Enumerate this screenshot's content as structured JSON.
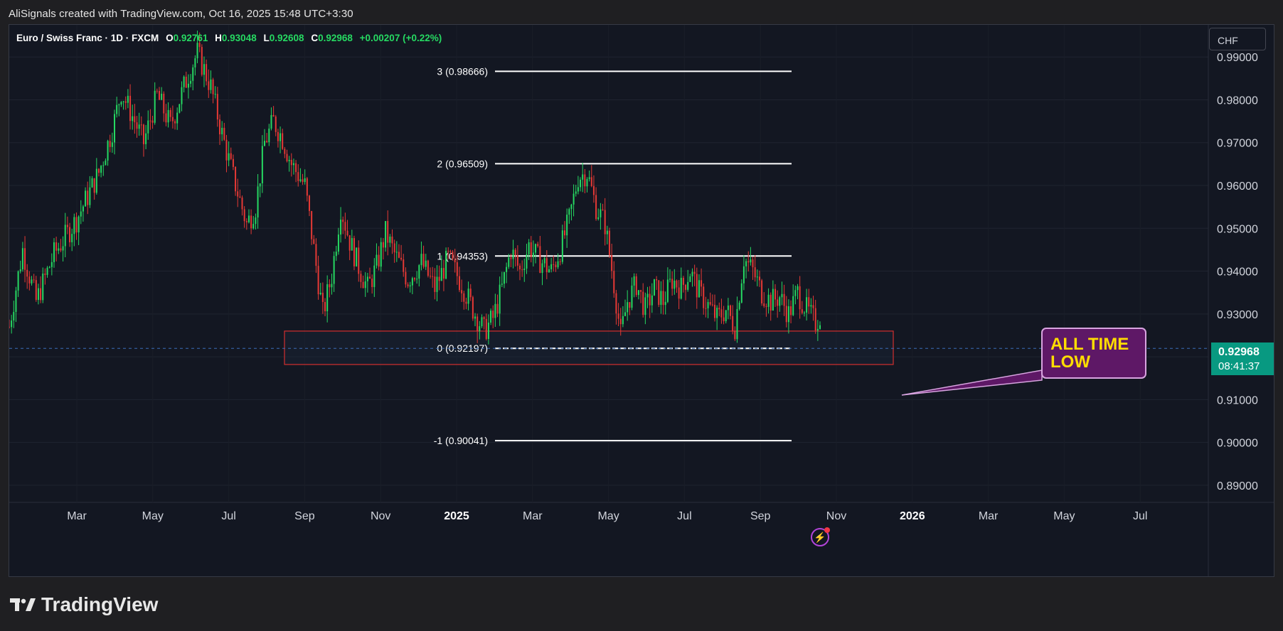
{
  "attribution": "AliSignals created with TradingView.com, Oct 16, 2025 15:48 UTC+3:30",
  "symbol": {
    "title": "Euro / Swiss Franc · 1D · FXCM",
    "open_label": "O",
    "open": "0.92761",
    "high_label": "H",
    "high": "0.93048",
    "low_label": "L",
    "low": "0.92608",
    "close_label": "C",
    "close": "0.92968",
    "change": "+0.00207 (+0.22%)"
  },
  "currency": "CHF",
  "price_tag": {
    "price": "0.92968",
    "countdown": "08:41:37"
  },
  "callout": {
    "line1": "ALL TIME",
    "line2": "LOW"
  },
  "logo_text": "TradingView",
  "icons": {
    "alert": "lightning-icon",
    "logo": "tradingview-logo-icon"
  },
  "colors": {
    "up": "#26d962",
    "down": "#e53935",
    "background": "#131722",
    "callout_bg": "#5e1866",
    "callout_text": "#ffdd00",
    "price_tag": "#089981",
    "zone_border": "#d32f2f"
  },
  "chart_data": {
    "type": "candlestick",
    "symbol": "EURCHF",
    "timeframe": "1D",
    "ylim": [
      0.886,
      0.9975
    ],
    "y_ticks": [
      "0.99000",
      "0.98000",
      "0.97000",
      "0.96000",
      "0.95000",
      "0.94000",
      "0.93000",
      "0.92000",
      "0.91000",
      "0.90000",
      "0.89000"
    ],
    "x_ticks": [
      {
        "label": "Mar",
        "year": false
      },
      {
        "label": "May",
        "year": false
      },
      {
        "label": "Jul",
        "year": false
      },
      {
        "label": "Sep",
        "year": false
      },
      {
        "label": "Nov",
        "year": false
      },
      {
        "label": "2025",
        "year": true
      },
      {
        "label": "Mar",
        "year": false
      },
      {
        "label": "May",
        "year": false
      },
      {
        "label": "Jul",
        "year": false
      },
      {
        "label": "Sep",
        "year": false
      },
      {
        "label": "Nov",
        "year": false
      },
      {
        "label": "2026",
        "year": true
      },
      {
        "label": "Mar",
        "year": false
      },
      {
        "label": "May",
        "year": false
      },
      {
        "label": "Jul",
        "year": false
      }
    ],
    "fib_levels": [
      {
        "label": "3 (0.98666)",
        "value": 0.98666
      },
      {
        "label": "2 (0.96509)",
        "value": 0.96509
      },
      {
        "label": "1 (0.94353)",
        "value": 0.94353
      },
      {
        "label": "0 (0.92197)",
        "value": 0.92197
      },
      {
        "label": "-1 (0.90041)",
        "value": 0.90041
      }
    ],
    "support_zone": [
      0.9182,
      0.926
    ],
    "last_price": 0.92968,
    "anchors": [
      [
        0,
        0.927
      ],
      [
        6,
        0.945
      ],
      [
        12,
        0.933
      ],
      [
        20,
        0.944
      ],
      [
        30,
        0.952
      ],
      [
        40,
        0.963
      ],
      [
        46,
        0.973
      ],
      [
        50,
        0.982
      ],
      [
        56,
        0.975
      ],
      [
        60,
        0.97
      ],
      [
        66,
        0.981
      ],
      [
        72,
        0.974
      ],
      [
        80,
        0.986
      ],
      [
        84,
        0.991
      ],
      [
        90,
        0.983
      ],
      [
        95,
        0.972
      ],
      [
        100,
        0.962
      ],
      [
        106,
        0.951
      ],
      [
        110,
        0.955
      ],
      [
        114,
        0.97
      ],
      [
        118,
        0.975
      ],
      [
        122,
        0.971
      ],
      [
        126,
        0.965
      ],
      [
        132,
        0.96
      ],
      [
        136,
        0.945
      ],
      [
        140,
        0.93
      ],
      [
        144,
        0.939
      ],
      [
        148,
        0.955
      ],
      [
        152,
        0.947
      ],
      [
        156,
        0.941
      ],
      [
        160,
        0.936
      ],
      [
        164,
        0.941
      ],
      [
        168,
        0.949
      ],
      [
        172,
        0.944
      ],
      [
        178,
        0.938
      ],
      [
        184,
        0.942
      ],
      [
        190,
        0.936
      ],
      [
        196,
        0.943
      ],
      [
        202,
        0.937
      ],
      [
        208,
        0.93
      ],
      [
        212,
        0.926
      ],
      [
        216,
        0.929
      ],
      [
        220,
        0.936
      ],
      [
        224,
        0.945
      ],
      [
        228,
        0.94
      ],
      [
        232,
        0.946
      ],
      [
        236,
        0.943
      ],
      [
        242,
        0.94
      ],
      [
        246,
        0.945
      ],
      [
        250,
        0.952
      ],
      [
        254,
        0.962
      ],
      [
        258,
        0.963
      ],
      [
        262,
        0.955
      ],
      [
        266,
        0.951
      ],
      [
        270,
        0.937
      ],
      [
        273,
        0.925
      ],
      [
        276,
        0.933
      ],
      [
        280,
        0.937
      ],
      [
        284,
        0.931
      ],
      [
        288,
        0.936
      ],
      [
        292,
        0.933
      ],
      [
        296,
        0.938
      ],
      [
        300,
        0.936
      ],
      [
        304,
        0.94
      ],
      [
        308,
        0.935
      ],
      [
        312,
        0.932
      ],
      [
        316,
        0.929
      ],
      [
        320,
        0.931
      ],
      [
        324,
        0.927
      ],
      [
        328,
        0.943
      ],
      [
        332,
        0.94
      ],
      [
        336,
        0.935
      ],
      [
        340,
        0.933
      ],
      [
        344,
        0.934
      ],
      [
        348,
        0.93
      ],
      [
        352,
        0.935
      ],
      [
        356,
        0.931
      ],
      [
        360,
        0.928
      ],
      [
        362,
        0.9297
      ]
    ]
  }
}
